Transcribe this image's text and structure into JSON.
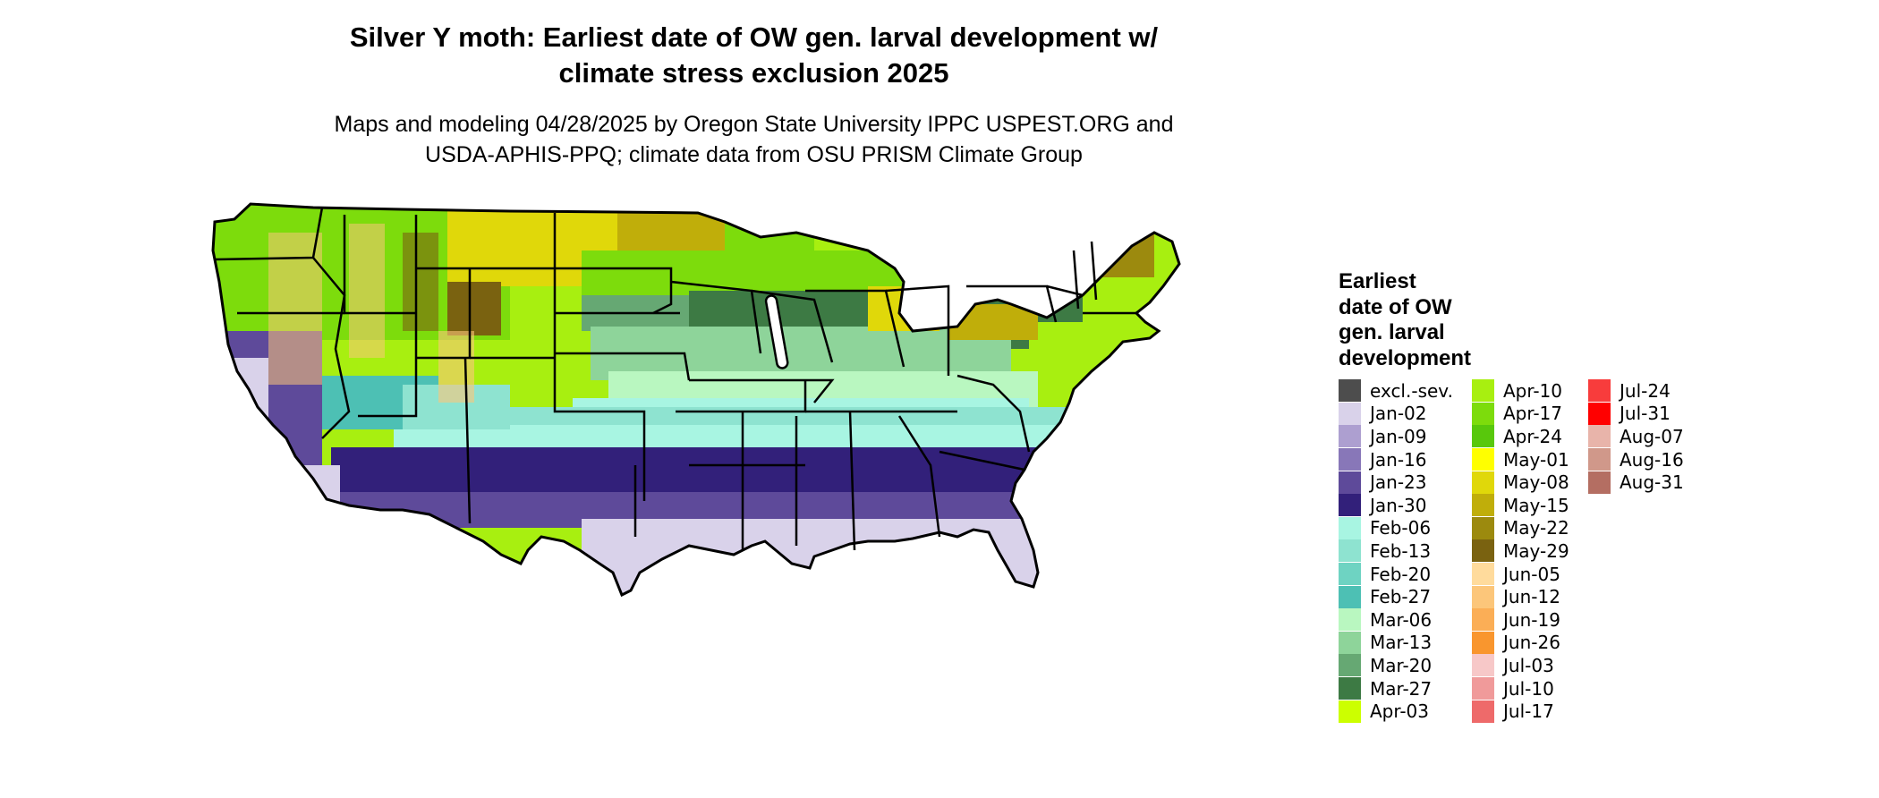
{
  "title_line1": "Silver Y moth: Earliest date of OW gen. larval development w/",
  "title_line2": "climate stress exclusion 2025",
  "subtitle_line1": "Maps and modeling 04/28/2025 by Oregon State University IPPC USPEST.ORG and",
  "subtitle_line2": "USDA-APHIS-PPQ; climate data from OSU PRISM Climate Group",
  "legend": {
    "title_lines": [
      "Earliest",
      "date of OW",
      "gen. larval",
      "development"
    ],
    "columns": [
      [
        {
          "label": "excl.-sev.",
          "color": "#4d4d4d"
        },
        {
          "label": "Jan-02",
          "color": "#d9d2ea"
        },
        {
          "label": "Jan-09",
          "color": "#ad9fd0"
        },
        {
          "label": "Jan-16",
          "color": "#8877b8"
        },
        {
          "label": "Jan-23",
          "color": "#5e4a9a"
        },
        {
          "label": "Jan-30",
          "color": "#32207a"
        },
        {
          "label": "Feb-06",
          "color": "#a8f5e2"
        },
        {
          "label": "Feb-13",
          "color": "#8ee3d0"
        },
        {
          "label": "Feb-20",
          "color": "#6ed3c2"
        },
        {
          "label": "Feb-27",
          "color": "#4dc0b4"
        },
        {
          "label": "Mar-06",
          "color": "#b9f7c0"
        },
        {
          "label": "Mar-13",
          "color": "#8ed49a"
        },
        {
          "label": "Mar-20",
          "color": "#66a873"
        },
        {
          "label": "Mar-27",
          "color": "#3d7a44"
        },
        {
          "label": "Apr-03",
          "color": "#ccff00"
        }
      ],
      [
        {
          "label": "Apr-10",
          "color": "#a8ef10"
        },
        {
          "label": "Apr-17",
          "color": "#7ddc0c"
        },
        {
          "label": "Apr-24",
          "color": "#58c80c"
        },
        {
          "label": "May-01",
          "color": "#ffff00"
        },
        {
          "label": "May-08",
          "color": "#e0d80a"
        },
        {
          "label": "May-15",
          "color": "#c0ae0a"
        },
        {
          "label": "May-22",
          "color": "#9c8a0e"
        },
        {
          "label": "May-29",
          "color": "#7a6210"
        },
        {
          "label": "Jun-05",
          "color": "#ffdb9c"
        },
        {
          "label": "Jun-12",
          "color": "#fcc67a"
        },
        {
          "label": "Jun-19",
          "color": "#fbae56"
        },
        {
          "label": "Jun-26",
          "color": "#f9962e"
        },
        {
          "label": "Jul-03",
          "color": "#f7c8c8"
        },
        {
          "label": "Jul-10",
          "color": "#f09a9a"
        },
        {
          "label": "Jul-17",
          "color": "#ee6a6a"
        }
      ],
      [
        {
          "label": "Jul-24",
          "color": "#f83c3c"
        },
        {
          "label": "Jul-31",
          "color": "#ff0000"
        },
        {
          "label": "Aug-07",
          "color": "#e8b4aa"
        },
        {
          "label": "Aug-16",
          "color": "#d0988a"
        },
        {
          "label": "Aug-31",
          "color": "#b46e62"
        }
      ]
    ]
  },
  "map_colors": {
    "south": "#32207a",
    "gulf": "#d9d2ea",
    "west_coast": "#5e4a9a",
    "teal_band": "#a8f5e2",
    "teal_dark": "#4dc0b4",
    "mid_green": "#8ed49a",
    "dark_green": "#3d7a44",
    "lime": "#7ddc0c",
    "yellow": "#ffff00",
    "olive": "#c0ae0a",
    "brown": "#7a6210",
    "peach": "#fcc67a",
    "gray": "#4d4d4d"
  }
}
